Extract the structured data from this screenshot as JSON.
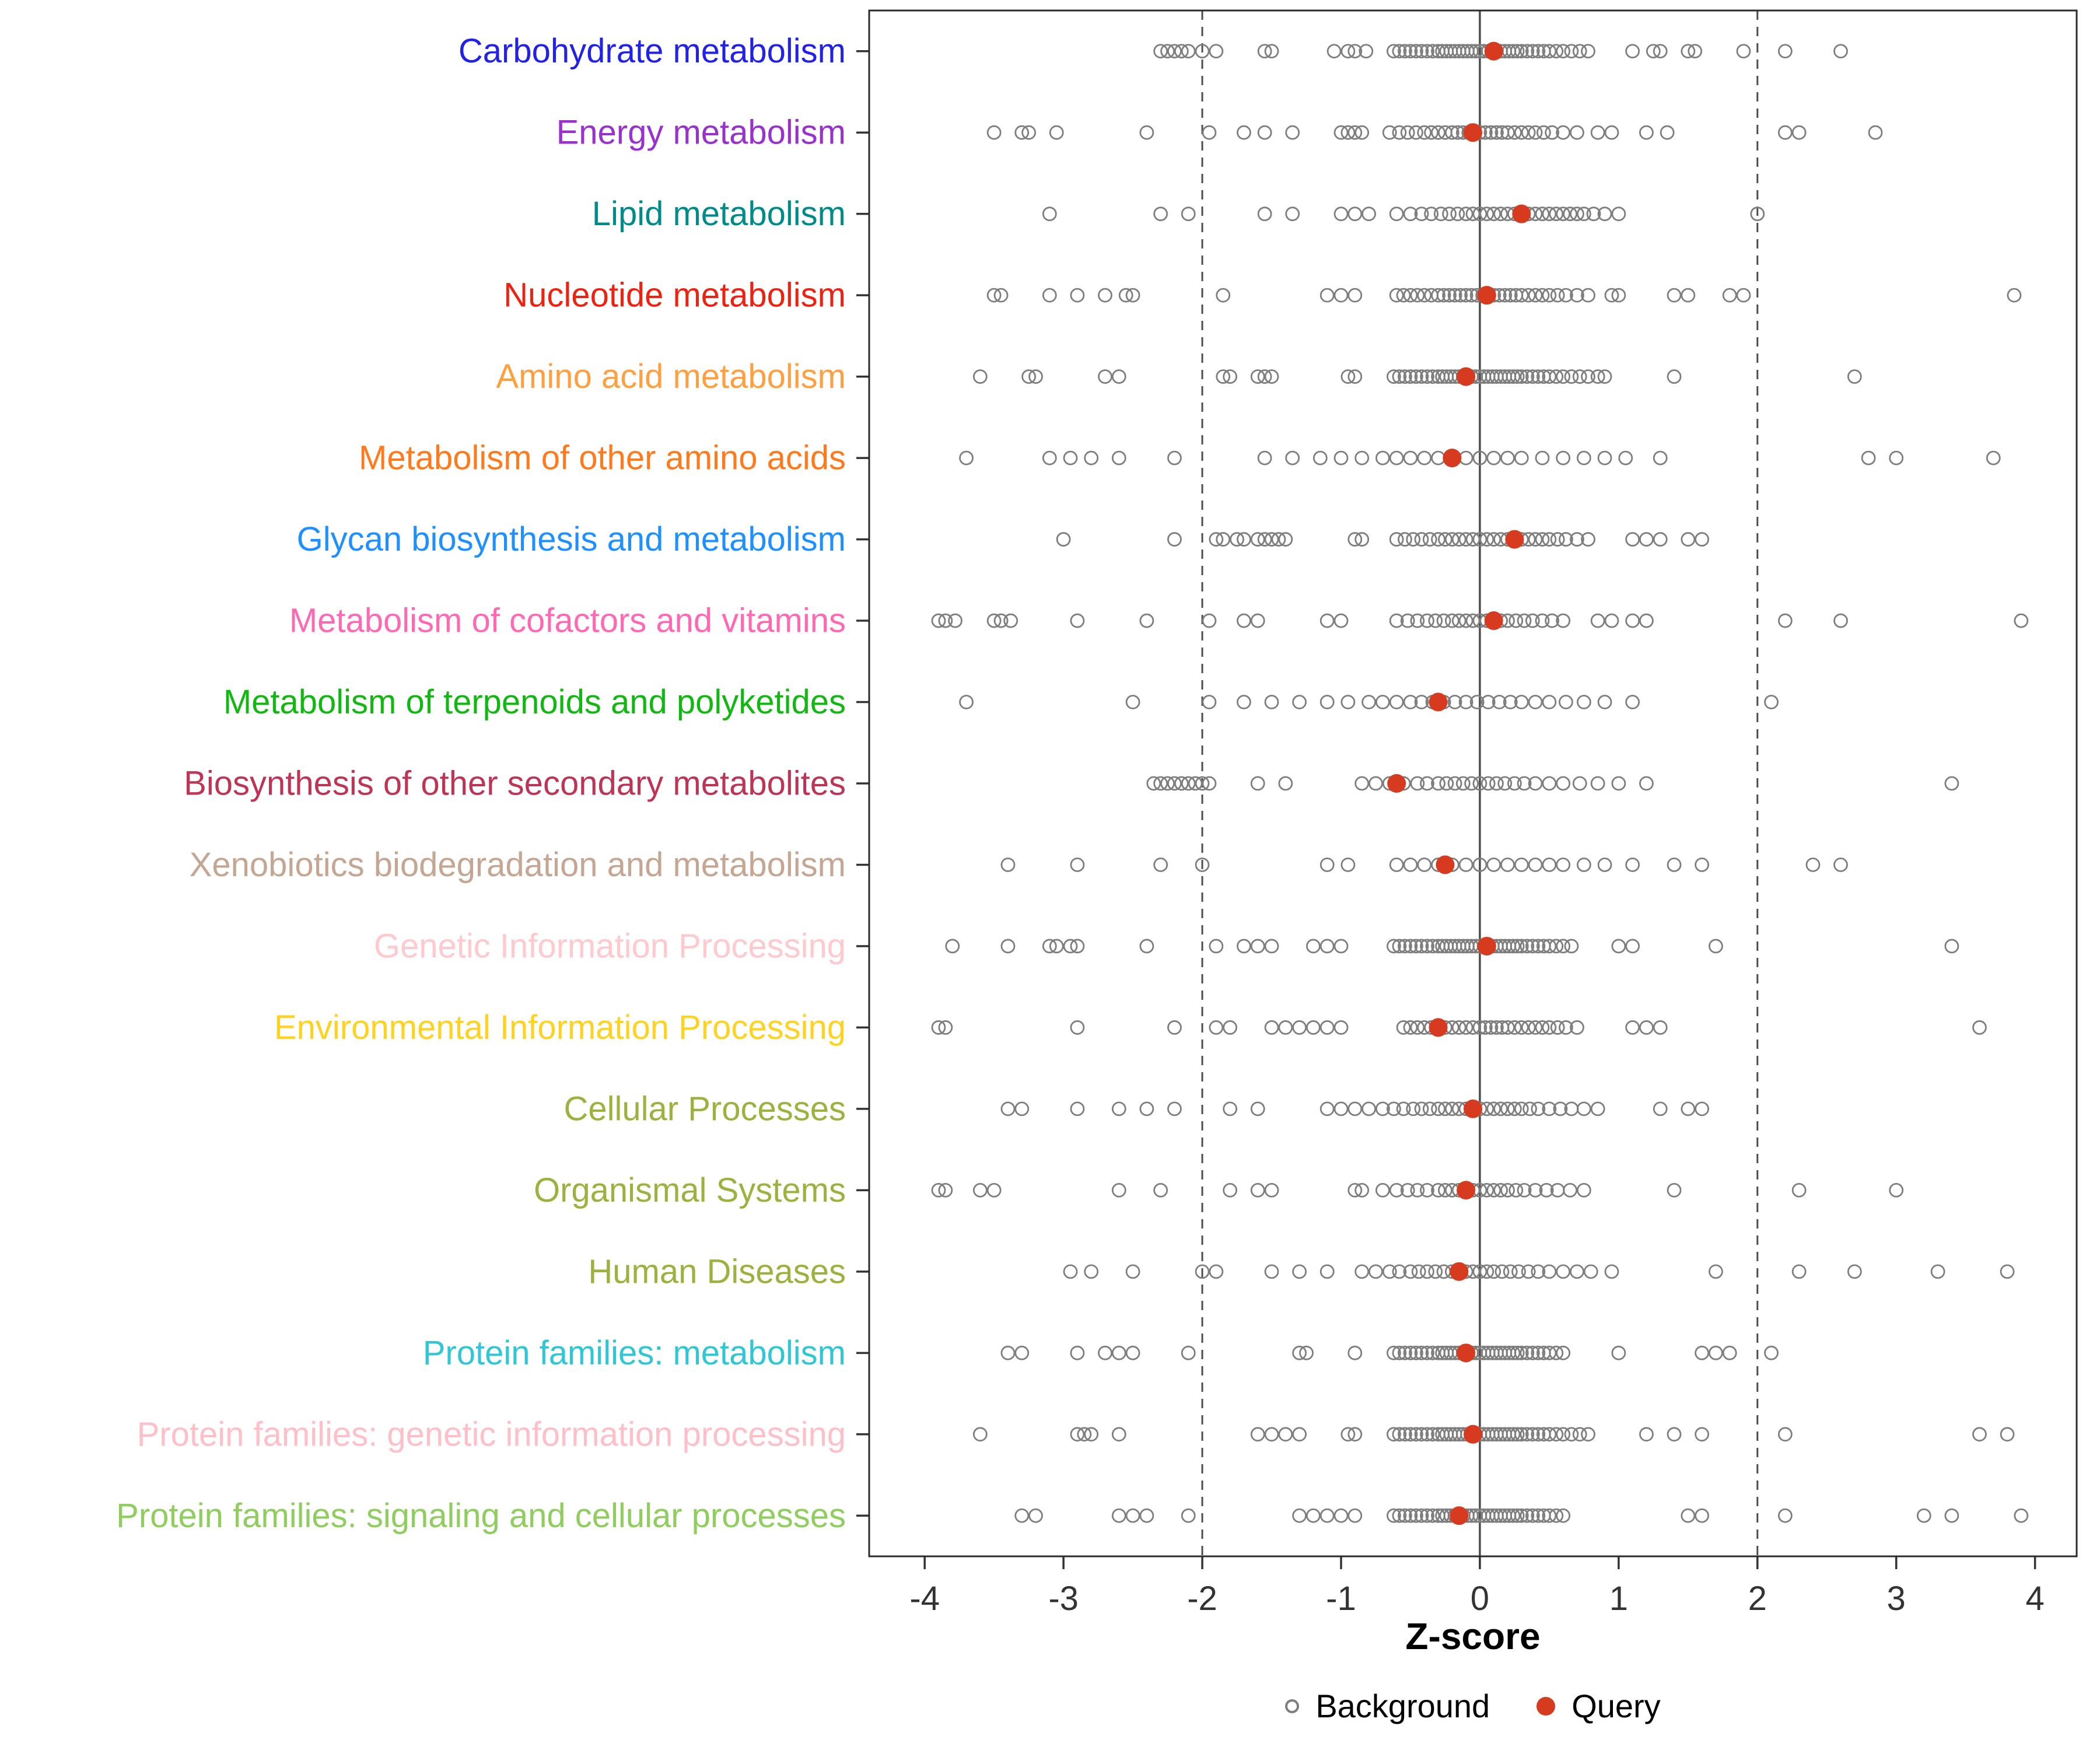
{
  "chart_data": {
    "type": "scatter",
    "title": "",
    "xlabel": "Z-score",
    "ylabel": "",
    "xlim": [
      -4.4,
      4.3
    ],
    "x_ticks": [
      -4,
      -3,
      -2,
      -1,
      0,
      1,
      2,
      3,
      4
    ],
    "grid": false,
    "legend_position": "bottom",
    "reference_lines": {
      "solid": [
        0
      ],
      "dashed": [
        -2,
        2
      ]
    },
    "legend": {
      "background_label": "Background",
      "query_label": "Query",
      "background_marker": "open-circle",
      "query_marker": "filled-circle"
    },
    "colors": {
      "background_point": "#7E7E7E",
      "query_point": "#D63B1F",
      "ref_line": "#4D4D4D",
      "axis": "#333333",
      "panel_border": "#2B2B2B"
    },
    "categories": [
      {
        "label": "Carbohydrate metabolism",
        "color": "#2222E6",
        "query": 0.1,
        "background": [
          -2.3,
          -2.25,
          -2.2,
          -2.15,
          -2.1,
          -2.0,
          -1.9,
          -1.55,
          -1.5,
          -1.05,
          -0.95,
          -0.9,
          -0.82,
          -0.62,
          -0.58,
          -0.54,
          -0.5,
          -0.46,
          -0.42,
          -0.38,
          -0.34,
          -0.3,
          -0.27,
          -0.24,
          -0.21,
          -0.18,
          -0.15,
          -0.12,
          -0.09,
          -0.06,
          -0.03,
          0,
          0.03,
          0.06,
          0.09,
          0.12,
          0.15,
          0.18,
          0.21,
          0.24,
          0.27,
          0.3,
          0.34,
          0.38,
          0.42,
          0.46,
          0.5,
          0.55,
          0.6,
          0.66,
          0.72,
          0.78,
          1.1,
          1.25,
          1.3,
          1.5,
          1.55,
          1.9,
          2.2,
          2.6
        ]
      },
      {
        "label": "Energy metabolism",
        "color": "#9932CC",
        "query": -0.05,
        "background": [
          -3.5,
          -3.3,
          -3.25,
          -3.05,
          -2.4,
          -1.95,
          -1.7,
          -1.55,
          -1.35,
          -1.0,
          -0.95,
          -0.9,
          -0.85,
          -0.65,
          -0.58,
          -0.52,
          -0.46,
          -0.4,
          -0.35,
          -0.3,
          -0.25,
          -0.2,
          -0.16,
          -0.12,
          -0.08,
          -0.04,
          0,
          0.04,
          0.08,
          0.12,
          0.16,
          0.2,
          0.25,
          0.3,
          0.35,
          0.4,
          0.46,
          0.52,
          0.6,
          0.7,
          0.85,
          0.95,
          1.2,
          1.35,
          2.2,
          2.3,
          2.85
        ]
      },
      {
        "label": "Lipid metabolism",
        "color": "#008B8B",
        "query": 0.3,
        "background": [
          -3.1,
          -2.3,
          -2.1,
          -1.55,
          -1.35,
          -1.0,
          -0.9,
          -0.8,
          -0.6,
          -0.5,
          -0.42,
          -0.35,
          -0.28,
          -0.22,
          -0.16,
          -0.1,
          -0.05,
          0,
          0.05,
          0.1,
          0.15,
          0.2,
          0.25,
          0.3,
          0.35,
          0.4,
          0.45,
          0.5,
          0.55,
          0.6,
          0.65,
          0.7,
          0.75,
          0.82,
          0.9,
          1.0,
          2.0
        ]
      },
      {
        "label": "Nucleotide metabolism",
        "color": "#EE2211",
        "query": 0.05,
        "background": [
          -3.5,
          -3.45,
          -3.1,
          -2.9,
          -2.7,
          -2.55,
          -2.5,
          -1.85,
          -1.1,
          -1.0,
          -0.9,
          -0.6,
          -0.55,
          -0.5,
          -0.45,
          -0.4,
          -0.35,
          -0.3,
          -0.26,
          -0.22,
          -0.18,
          -0.14,
          -0.1,
          -0.06,
          -0.02,
          0.02,
          0.06,
          0.1,
          0.14,
          0.18,
          0.22,
          0.26,
          0.3,
          0.35,
          0.4,
          0.45,
          0.5,
          0.56,
          0.62,
          0.7,
          0.78,
          0.95,
          1.0,
          1.4,
          1.5,
          1.8,
          1.9,
          3.85
        ]
      },
      {
        "label": "Amino acid metabolism",
        "color": "#FFA040",
        "query": -0.1,
        "background": [
          -3.6,
          -3.25,
          -3.2,
          -2.7,
          -2.6,
          -1.85,
          -1.8,
          -1.6,
          -1.55,
          -1.5,
          -0.95,
          -0.9,
          -0.62,
          -0.58,
          -0.54,
          -0.5,
          -0.46,
          -0.42,
          -0.38,
          -0.34,
          -0.3,
          -0.27,
          -0.24,
          -0.21,
          -0.18,
          -0.15,
          -0.12,
          -0.09,
          -0.06,
          -0.03,
          0,
          0.03,
          0.06,
          0.09,
          0.12,
          0.15,
          0.18,
          0.21,
          0.24,
          0.27,
          0.3,
          0.34,
          0.38,
          0.42,
          0.46,
          0.5,
          0.55,
          0.6,
          0.66,
          0.72,
          0.78,
          0.85,
          0.9,
          1.4,
          2.7
        ]
      },
      {
        "label": "Metabolism of other amino acids",
        "color": "#FF7A1C",
        "query": -0.2,
        "background": [
          -3.7,
          -3.1,
          -2.95,
          -2.8,
          -2.6,
          -2.2,
          -1.55,
          -1.35,
          -1.15,
          -1.0,
          -0.85,
          -0.7,
          -0.6,
          -0.5,
          -0.4,
          -0.3,
          -0.2,
          -0.1,
          0,
          0.1,
          0.2,
          0.3,
          0.45,
          0.6,
          0.75,
          0.9,
          1.05,
          1.3,
          2.8,
          3.0,
          3.7
        ]
      },
      {
        "label": "Glycan biosynthesis and metabolism",
        "color": "#1E90FF",
        "query": 0.25,
        "background": [
          -3.0,
          -2.2,
          -1.9,
          -1.85,
          -1.75,
          -1.7,
          -1.6,
          -1.55,
          -1.5,
          -1.45,
          -1.4,
          -0.9,
          -0.85,
          -0.6,
          -0.54,
          -0.48,
          -0.42,
          -0.36,
          -0.3,
          -0.25,
          -0.2,
          -0.15,
          -0.1,
          -0.05,
          0,
          0.05,
          0.1,
          0.15,
          0.2,
          0.25,
          0.3,
          0.35,
          0.4,
          0.45,
          0.5,
          0.56,
          0.62,
          0.7,
          0.78,
          1.1,
          1.2,
          1.3,
          1.5,
          1.6
        ]
      },
      {
        "label": "Metabolism of cofactors and vitamins",
        "color": "#FF69B4",
        "query": 0.1,
        "background": [
          -3.9,
          -3.85,
          -3.78,
          -3.5,
          -3.45,
          -3.38,
          -2.9,
          -2.4,
          -1.95,
          -1.7,
          -1.6,
          -1.1,
          -1.0,
          -0.6,
          -0.52,
          -0.45,
          -0.38,
          -0.32,
          -0.26,
          -0.2,
          -0.15,
          -0.1,
          -0.05,
          0,
          0.05,
          0.1,
          0.15,
          0.2,
          0.26,
          0.32,
          0.38,
          0.45,
          0.52,
          0.6,
          0.85,
          0.95,
          1.1,
          1.2,
          2.2,
          2.6,
          3.9
        ]
      },
      {
        "label": "Metabolism of terpenoids and polyketides",
        "color": "#12B812",
        "query": -0.3,
        "background": [
          -3.7,
          -2.5,
          -1.95,
          -1.7,
          -1.5,
          -1.3,
          -1.1,
          -0.95,
          -0.8,
          -0.7,
          -0.6,
          -0.5,
          -0.42,
          -0.34,
          -0.26,
          -0.18,
          -0.1,
          -0.02,
          0.06,
          0.14,
          0.22,
          0.3,
          0.4,
          0.5,
          0.62,
          0.75,
          0.9,
          1.1,
          2.1
        ]
      },
      {
        "label": "Biosynthesis of other secondary metabolites",
        "color": "#BE3455",
        "query": -0.6,
        "background": [
          -2.35,
          -2.3,
          -2.25,
          -2.2,
          -2.15,
          -2.1,
          -2.05,
          -2.0,
          -1.95,
          -1.6,
          -1.4,
          -0.85,
          -0.75,
          -0.65,
          -0.55,
          -0.45,
          -0.38,
          -0.3,
          -0.24,
          -0.18,
          -0.12,
          -0.06,
          0,
          0.06,
          0.12,
          0.18,
          0.25,
          0.32,
          0.4,
          0.5,
          0.6,
          0.72,
          0.85,
          1.0,
          1.2,
          3.4
        ]
      },
      {
        "label": "Xenobiotics biodegradation and metabolism",
        "color": "#C5A693",
        "query": -0.25,
        "background": [
          -3.4,
          -2.9,
          -2.3,
          -2.0,
          -1.1,
          -0.95,
          -0.6,
          -0.5,
          -0.4,
          -0.3,
          -0.2,
          -0.1,
          0,
          0.1,
          0.2,
          0.3,
          0.4,
          0.5,
          0.6,
          0.75,
          0.9,
          1.1,
          1.4,
          1.6,
          2.4,
          2.6
        ]
      },
      {
        "label": "Genetic Information Processing",
        "color": "#FFC9CE",
        "query": 0.05,
        "background": [
          -3.8,
          -3.4,
          -3.1,
          -3.05,
          -2.95,
          -2.9,
          -2.4,
          -1.9,
          -1.7,
          -1.6,
          -1.5,
          -1.2,
          -1.1,
          -1.0,
          -0.62,
          -0.58,
          -0.54,
          -0.5,
          -0.46,
          -0.42,
          -0.38,
          -0.34,
          -0.3,
          -0.27,
          -0.24,
          -0.21,
          -0.18,
          -0.15,
          -0.12,
          -0.09,
          -0.06,
          -0.03,
          0,
          0.03,
          0.06,
          0.09,
          0.12,
          0.15,
          0.18,
          0.21,
          0.24,
          0.27,
          0.3,
          0.34,
          0.38,
          0.42,
          0.46,
          0.5,
          0.55,
          0.6,
          0.66,
          1.0,
          1.1,
          1.7,
          3.4
        ]
      },
      {
        "label": "Environmental Information Processing",
        "color": "#FFD21F",
        "query": -0.3,
        "background": [
          -3.9,
          -3.85,
          -2.9,
          -2.2,
          -1.9,
          -1.8,
          -1.5,
          -1.4,
          -1.3,
          -1.2,
          -1.1,
          -1.0,
          -0.55,
          -0.5,
          -0.45,
          -0.4,
          -0.35,
          -0.3,
          -0.25,
          -0.2,
          -0.15,
          -0.1,
          -0.05,
          0,
          0.04,
          0.08,
          0.12,
          0.16,
          0.2,
          0.25,
          0.3,
          0.35,
          0.4,
          0.45,
          0.5,
          0.56,
          0.62,
          0.7,
          1.1,
          1.2,
          1.3,
          3.6
        ]
      },
      {
        "label": "Cellular Processes",
        "color": "#9CB23F",
        "query": -0.05,
        "background": [
          -3.4,
          -3.3,
          -2.9,
          -2.6,
          -2.4,
          -2.2,
          -1.8,
          -1.6,
          -1.1,
          -1.0,
          -0.9,
          -0.8,
          -0.7,
          -0.62,
          -0.55,
          -0.48,
          -0.42,
          -0.36,
          -0.3,
          -0.25,
          -0.2,
          -0.15,
          -0.1,
          -0.05,
          0,
          0.05,
          0.1,
          0.15,
          0.2,
          0.25,
          0.3,
          0.36,
          0.42,
          0.5,
          0.58,
          0.66,
          0.75,
          0.85,
          1.3,
          1.5,
          1.6
        ]
      },
      {
        "label": "Organismal Systems",
        "color": "#9CB23F",
        "query": -0.1,
        "background": [
          -3.9,
          -3.85,
          -3.6,
          -3.5,
          -2.6,
          -2.3,
          -1.8,
          -1.6,
          -1.5,
          -0.9,
          -0.85,
          -0.7,
          -0.6,
          -0.52,
          -0.45,
          -0.38,
          -0.3,
          -0.25,
          -0.2,
          -0.15,
          -0.1,
          -0.05,
          0,
          0.05,
          0.1,
          0.15,
          0.2,
          0.26,
          0.32,
          0.4,
          0.48,
          0.56,
          0.65,
          0.75,
          1.4,
          2.3,
          3.0
        ]
      },
      {
        "label": "Human Diseases",
        "color": "#9CB23F",
        "query": -0.15,
        "background": [
          -2.95,
          -2.8,
          -2.5,
          -2.0,
          -1.9,
          -1.5,
          -1.3,
          -1.1,
          -0.85,
          -0.75,
          -0.65,
          -0.58,
          -0.5,
          -0.44,
          -0.38,
          -0.32,
          -0.26,
          -0.2,
          -0.15,
          -0.1,
          -0.05,
          0,
          0.05,
          0.1,
          0.16,
          0.22,
          0.28,
          0.35,
          0.42,
          0.5,
          0.6,
          0.7,
          0.8,
          0.95,
          1.7,
          2.3,
          2.7,
          3.3,
          3.8
        ]
      },
      {
        "label": "Protein families: metabolism",
        "color": "#2FC7D6",
        "query": -0.1,
        "background": [
          -3.4,
          -3.3,
          -2.9,
          -2.7,
          -2.6,
          -2.5,
          -2.1,
          -1.3,
          -1.25,
          -0.9,
          -0.62,
          -0.58,
          -0.54,
          -0.5,
          -0.46,
          -0.42,
          -0.38,
          -0.34,
          -0.3,
          -0.27,
          -0.24,
          -0.21,
          -0.18,
          -0.15,
          -0.12,
          -0.09,
          -0.06,
          -0.03,
          0,
          0.03,
          0.06,
          0.09,
          0.12,
          0.15,
          0.18,
          0.21,
          0.24,
          0.27,
          0.3,
          0.34,
          0.38,
          0.42,
          0.46,
          0.5,
          0.55,
          0.6,
          1.0,
          1.6,
          1.7,
          1.8,
          2.1
        ]
      },
      {
        "label": "Protein families: genetic information processing",
        "color": "#FFBFC9",
        "query": -0.05,
        "background": [
          -3.6,
          -2.9,
          -2.85,
          -2.8,
          -2.6,
          -1.6,
          -1.5,
          -1.4,
          -1.3,
          -0.95,
          -0.9,
          -0.62,
          -0.58,
          -0.54,
          -0.5,
          -0.46,
          -0.42,
          -0.38,
          -0.34,
          -0.3,
          -0.27,
          -0.24,
          -0.21,
          -0.18,
          -0.15,
          -0.12,
          -0.09,
          -0.06,
          -0.03,
          0,
          0.03,
          0.06,
          0.09,
          0.12,
          0.15,
          0.18,
          0.21,
          0.24,
          0.27,
          0.3,
          0.34,
          0.38,
          0.42,
          0.46,
          0.5,
          0.55,
          0.6,
          0.66,
          0.72,
          0.78,
          1.2,
          1.4,
          1.6,
          2.2,
          3.6,
          3.8
        ]
      },
      {
        "label": "Protein families: signaling and cellular processes",
        "color": "#8FCE5E",
        "query": -0.15,
        "background": [
          -3.3,
          -3.2,
          -2.6,
          -2.5,
          -2.4,
          -2.1,
          -1.3,
          -1.2,
          -1.1,
          -1.0,
          -0.9,
          -0.62,
          -0.58,
          -0.54,
          -0.5,
          -0.46,
          -0.42,
          -0.38,
          -0.34,
          -0.3,
          -0.27,
          -0.24,
          -0.21,
          -0.18,
          -0.15,
          -0.12,
          -0.09,
          -0.06,
          -0.03,
          0,
          0.03,
          0.06,
          0.09,
          0.12,
          0.15,
          0.18,
          0.21,
          0.24,
          0.27,
          0.3,
          0.34,
          0.38,
          0.42,
          0.46,
          0.5,
          0.55,
          0.6,
          1.5,
          1.6,
          2.2,
          3.2,
          3.4,
          3.9
        ]
      }
    ]
  }
}
